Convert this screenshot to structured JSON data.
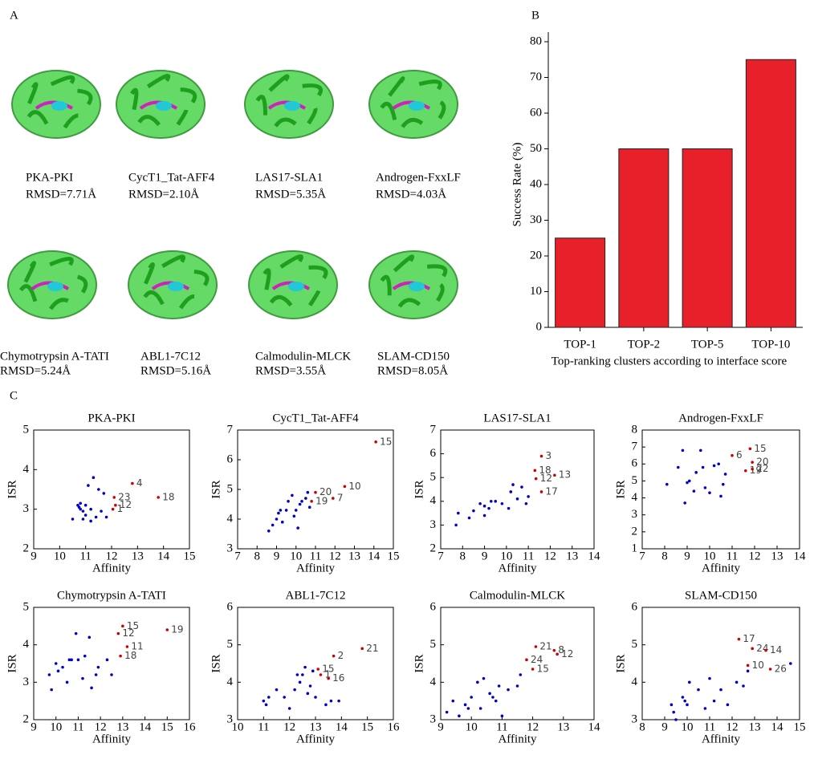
{
  "panel_labels": [
    "A",
    "B",
    "C"
  ],
  "structures": [
    {
      "name": "PKA-PKI",
      "rmsd": "RMSD=7.71Å"
    },
    {
      "name": "CycT1_Tat-AFF4",
      "rmsd": "RMSD=2.10Å"
    },
    {
      "name": "LAS17-SLA1",
      "rmsd": "RMSD=5.35Å"
    },
    {
      "name": "Androgen-FxxLF",
      "rmsd": "RMSD=4.03Å"
    },
    {
      "name": "Chymotrypsin A-TATI",
      "rmsd": "RMSD=5.24Å"
    },
    {
      "name": "ABL1-7C12",
      "rmsd": "RMSD=5.16Å"
    },
    {
      "name": "Calmodulin-MLCK",
      "rmsd": "RMSD=3.55Å"
    },
    {
      "name": "SLAM-CD150",
      "rmsd": "RMSD=8.05Å"
    }
  ],
  "chart_data": [
    {
      "type": "bar",
      "x_label": "Top-ranking clusters according to interface score",
      "y_label": "Success Rate (%)",
      "categories": [
        "TOP-1",
        "TOP-2",
        "TOP-5",
        "TOP-10"
      ],
      "values": [
        25,
        50,
        50,
        75
      ],
      "color": "#e8202a",
      "ylim": [
        0,
        80
      ],
      "yticks": [
        0,
        10,
        20,
        30,
        40,
        50,
        60,
        70,
        80
      ]
    },
    {
      "type": "scatter",
      "title": "PKA-PKI",
      "x_label": "Affinity",
      "y_label": "ISR",
      "xlim": [
        9,
        15
      ],
      "xticks": [
        9,
        10,
        11,
        12,
        13,
        14,
        15
      ],
      "ylim": [
        2,
        5
      ],
      "yticks": [
        2,
        3,
        4,
        5
      ],
      "series": [
        {
          "color": "#0000cc",
          "x": [
            10.5,
            10.7,
            10.8,
            10.75,
            10.9,
            11.0,
            10.9,
            11.1,
            11.3,
            11.2,
            11.4,
            11.5,
            11.7,
            11.6,
            11.8,
            11.0,
            10.8,
            11.2
          ],
          "values": [
            2.75,
            3.1,
            3.15,
            3.05,
            2.95,
            2.85,
            2.75,
            3.6,
            3.8,
            3.0,
            2.8,
            3.5,
            3.4,
            2.95,
            2.8,
            3.1,
            3.0,
            2.7
          ]
        },
        {
          "color": "#cc0000",
          "x": [
            12.8,
            12.1,
            12.15,
            12.05,
            13.8
          ],
          "values": [
            3.65,
            3.3,
            3.1,
            3.0,
            3.3
          ],
          "point_labels": [
            "4",
            "23",
            "12",
            "1",
            "18"
          ]
        }
      ]
    },
    {
      "type": "scatter",
      "title": "CycT1_Tat-AFF4",
      "x_label": "Affinity",
      "y_label": "ISR",
      "xlim": [
        7,
        15
      ],
      "xticks": [
        7,
        8,
        9,
        10,
        11,
        12,
        13,
        14,
        15
      ],
      "ylim": [
        3,
        7
      ],
      "yticks": [
        3,
        4,
        5,
        6,
        7
      ],
      "series": [
        {
          "color": "#0000cc",
          "x": [
            8.6,
            8.8,
            9.0,
            9.1,
            9.3,
            9.5,
            9.6,
            9.8,
            9.9,
            10.0,
            10.1,
            10.3,
            10.5,
            10.6,
            10.7,
            9.2,
            10.2
          ],
          "values": [
            3.6,
            3.8,
            4.0,
            4.2,
            3.9,
            4.3,
            4.6,
            4.8,
            4.1,
            4.3,
            3.7,
            4.6,
            4.7,
            4.9,
            4.4,
            4.3,
            4.5
          ]
        },
        {
          "color": "#cc0000",
          "x": [
            11.0,
            10.8,
            11.9,
            12.5,
            14.1
          ],
          "values": [
            4.9,
            4.6,
            4.7,
            5.1,
            6.6
          ],
          "point_labels": [
            "20",
            "19",
            "7",
            "10",
            "15"
          ]
        }
      ]
    },
    {
      "type": "scatter",
      "title": "LAS17-SLA1",
      "x_label": "Affinity",
      "y_label": "ISR",
      "xlim": [
        7,
        14
      ],
      "xticks": [
        7,
        8,
        9,
        10,
        11,
        12,
        13,
        14
      ],
      "ylim": [
        2,
        7
      ],
      "yticks": [
        2,
        3,
        4,
        5,
        6,
        7
      ],
      "series": [
        {
          "color": "#0000cc",
          "x": [
            7.7,
            7.8,
            8.3,
            8.5,
            8.8,
            9.0,
            9.2,
            9.3,
            9.5,
            9.8,
            10.2,
            10.3,
            10.5,
            10.7,
            10.9,
            11.0,
            10.1,
            9.0
          ],
          "values": [
            3.0,
            3.5,
            3.3,
            3.6,
            3.9,
            3.4,
            3.7,
            4.0,
            4.0,
            3.9,
            4.4,
            4.7,
            4.1,
            4.6,
            3.9,
            4.2,
            3.7,
            3.8
          ]
        },
        {
          "color": "#cc0000",
          "x": [
            11.6,
            11.3,
            11.35,
            12.2,
            11.6
          ],
          "values": [
            5.9,
            5.3,
            4.95,
            5.1,
            4.4
          ],
          "point_labels": [
            "3",
            "18",
            "12",
            "13",
            "17"
          ]
        }
      ]
    },
    {
      "type": "scatter",
      "title": "Androgen-FxxLF",
      "x_label": "Affinity",
      "y_label": "ISR",
      "xlim": [
        7,
        14
      ],
      "xticks": [
        7,
        8,
        9,
        10,
        11,
        12,
        13,
        14
      ],
      "ylim": [
        1,
        8
      ],
      "yticks": [
        1,
        2,
        3,
        4,
        5,
        6,
        7,
        8
      ],
      "series": [
        {
          "color": "#0000cc",
          "x": [
            8.1,
            8.6,
            8.8,
            8.9,
            9.1,
            9.3,
            9.4,
            9.6,
            9.7,
            9.8,
            10.0,
            10.2,
            10.4,
            10.5,
            10.6,
            10.7,
            9.0
          ],
          "values": [
            4.8,
            5.8,
            6.8,
            3.7,
            5.0,
            4.4,
            5.5,
            6.8,
            5.8,
            4.6,
            4.3,
            5.9,
            6.0,
            4.1,
            4.8,
            5.4,
            4.9
          ]
        },
        {
          "color": "#cc0000",
          "x": [
            11.8,
            11.0,
            11.9,
            11.6,
            11.9
          ],
          "values": [
            6.9,
            6.5,
            6.1,
            5.6,
            5.7
          ],
          "point_labels": [
            "15",
            "6",
            "20",
            "19",
            "22"
          ]
        }
      ]
    },
    {
      "type": "scatter",
      "title": "Chymotrypsin A-TATI",
      "x_label": "Affinity",
      "y_label": "ISR",
      "xlim": [
        9,
        16
      ],
      "xticks": [
        9,
        10,
        11,
        12,
        13,
        14,
        15,
        16
      ],
      "ylim": [
        2,
        5
      ],
      "yticks": [
        2,
        3,
        4,
        5
      ],
      "series": [
        {
          "color": "#0000cc",
          "x": [
            9.7,
            9.8,
            10.0,
            10.1,
            10.3,
            10.5,
            10.7,
            10.9,
            11.0,
            11.2,
            11.3,
            11.5,
            11.6,
            11.9,
            11.8,
            12.3,
            12.5,
            10.6
          ],
          "values": [
            3.2,
            2.8,
            3.5,
            3.3,
            3.4,
            3.0,
            3.6,
            4.3,
            3.6,
            3.1,
            3.7,
            4.2,
            2.85,
            3.4,
            3.2,
            3.6,
            3.2,
            3.6
          ]
        },
        {
          "color": "#cc0000",
          "x": [
            13.0,
            12.8,
            13.2,
            12.9,
            15.0
          ],
          "values": [
            4.5,
            4.3,
            3.95,
            3.7,
            4.4
          ],
          "point_labels": [
            "15",
            "12",
            "11",
            "18",
            "19"
          ]
        }
      ]
    },
    {
      "type": "scatter",
      "title": "ABL1-7C12",
      "x_label": "Affinity",
      "y_label": "ISR",
      "xlim": [
        10,
        16
      ],
      "xticks": [
        10,
        11,
        12,
        13,
        14,
        15,
        16
      ],
      "ylim": [
        3,
        6
      ],
      "yticks": [
        3,
        4,
        5,
        6
      ],
      "series": [
        {
          "color": "#0000cc",
          "x": [
            11.0,
            11.1,
            11.5,
            11.8,
            12.0,
            12.2,
            12.4,
            12.5,
            12.6,
            12.7,
            12.8,
            12.9,
            13.0,
            13.4,
            13.6,
            13.9,
            12.3,
            11.2
          ],
          "values": [
            3.5,
            3.4,
            3.8,
            3.6,
            3.3,
            3.8,
            4.0,
            4.2,
            4.4,
            3.7,
            3.9,
            4.3,
            3.6,
            3.4,
            3.5,
            3.5,
            4.2,
            3.6
          ]
        },
        {
          "color": "#cc0000",
          "x": [
            13.1,
            13.2,
            13.7,
            13.5,
            14.8
          ],
          "values": [
            4.35,
            4.2,
            4.7,
            4.1,
            4.9
          ],
          "point_labels": [
            "15",
            "1",
            "2",
            "16",
            "21"
          ]
        }
      ]
    },
    {
      "type": "scatter",
      "title": "Calmodulin-MLCK",
      "x_label": "Affinity",
      "y_label": "ISR",
      "xlim": [
        9,
        14
      ],
      "xticks": [
        9,
        10,
        11,
        12,
        13,
        14
      ],
      "ylim": [
        3,
        6
      ],
      "yticks": [
        3,
        4,
        5,
        6
      ],
      "series": [
        {
          "color": "#0000cc",
          "x": [
            9.2,
            9.4,
            9.6,
            9.8,
            10.0,
            10.2,
            10.3,
            10.4,
            10.6,
            10.8,
            10.9,
            11.0,
            11.2,
            11.5,
            11.6,
            10.7,
            9.9
          ],
          "values": [
            3.2,
            3.5,
            3.1,
            3.4,
            3.6,
            4.0,
            3.3,
            4.1,
            3.7,
            3.5,
            3.9,
            3.1,
            3.8,
            3.9,
            4.2,
            3.6,
            3.3
          ]
        },
        {
          "color": "#cc0000",
          "x": [
            12.1,
            11.8,
            12.0,
            12.7,
            12.8
          ],
          "values": [
            4.95,
            4.6,
            4.35,
            4.85,
            4.75
          ],
          "point_labels": [
            "21",
            "24",
            "15",
            "8",
            "12"
          ]
        }
      ]
    },
    {
      "type": "scatter",
      "title": "SLAM-CD150",
      "x_label": "Affinity",
      "y_label": "ISR",
      "xlim": [
        8,
        15
      ],
      "xticks": [
        8,
        9,
        10,
        11,
        12,
        13,
        14,
        15
      ],
      "ylim": [
        3,
        6
      ],
      "yticks": [
        3,
        4,
        5,
        6
      ],
      "series": [
        {
          "color": "#0000cc",
          "x": [
            9.3,
            9.4,
            9.5,
            9.8,
            10.0,
            10.1,
            10.5,
            10.8,
            11.0,
            11.2,
            11.5,
            11.8,
            12.2,
            12.5,
            12.7,
            14.6,
            9.9
          ],
          "values": [
            3.4,
            3.2,
            3.0,
            3.6,
            3.4,
            4.0,
            3.8,
            3.3,
            4.1,
            3.5,
            3.8,
            3.4,
            4.0,
            3.9,
            4.3,
            4.5,
            3.5
          ]
        },
        {
          "color": "#cc0000",
          "x": [
            12.3,
            12.9,
            13.5,
            12.7,
            13.7
          ],
          "values": [
            5.15,
            4.9,
            4.85,
            4.45,
            4.35
          ],
          "point_labels": [
            "17",
            "24",
            "14",
            "10",
            "26"
          ]
        }
      ]
    }
  ]
}
